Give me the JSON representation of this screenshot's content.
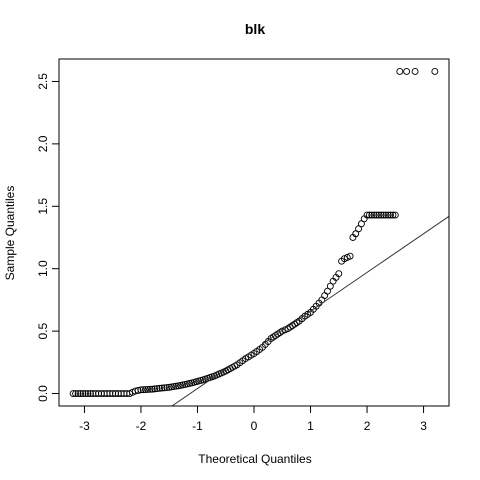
{
  "chart_data": {
    "type": "scatter",
    "title": "blk",
    "xlabel": "Theoretical Quantiles",
    "ylabel": "Sample Quantiles",
    "xlim": [
      -3.45,
      3.45
    ],
    "ylim": [
      -0.1,
      2.68
    ],
    "xticks": [
      -3,
      -2,
      -1,
      0,
      1,
      2,
      3
    ],
    "yticks": [
      0.0,
      0.5,
      1.0,
      1.5,
      2.0,
      2.5
    ],
    "xtick_labels": [
      "-3",
      "-2",
      "-1",
      "0",
      "1",
      "2",
      "3"
    ],
    "ytick_labels": [
      "0.0",
      "0.5",
      "1.0",
      "1.5",
      "2.0",
      "2.5"
    ],
    "grid": false,
    "marker": "open-circle",
    "reference_line": {
      "intercept": 0.35,
      "slope": 0.31
    },
    "points_curve": [
      [
        -3.2,
        0.0
      ],
      [
        -2.85,
        0.0
      ],
      [
        -2.7,
        0.0
      ],
      [
        -2.6,
        0.0
      ],
      [
        -2.5,
        0.0
      ],
      [
        -2.4,
        0.0
      ],
      [
        -2.3,
        0.0
      ],
      [
        -2.2,
        0.0
      ],
      [
        -2.15,
        0.01
      ],
      [
        -2.1,
        0.02
      ],
      [
        -2.0,
        0.03
      ],
      [
        -1.8,
        0.035
      ],
      [
        -1.5,
        0.05
      ],
      [
        -1.3,
        0.065
      ],
      [
        -1.1,
        0.085
      ],
      [
        -0.9,
        0.11
      ],
      [
        -0.7,
        0.14
      ],
      [
        -0.5,
        0.18
      ],
      [
        -0.3,
        0.23
      ],
      [
        -0.15,
        0.28
      ],
      [
        0.0,
        0.32
      ],
      [
        0.15,
        0.37
      ],
      [
        0.3,
        0.44
      ],
      [
        0.5,
        0.5
      ],
      [
        0.6,
        0.52
      ],
      [
        0.8,
        0.58
      ],
      [
        0.9,
        0.62
      ],
      [
        1.0,
        0.65
      ],
      [
        1.1,
        0.7
      ],
      [
        1.2,
        0.75
      ],
      [
        1.3,
        0.82
      ],
      [
        1.4,
        0.9
      ],
      [
        1.5,
        0.96
      ],
      [
        1.55,
        1.06
      ],
      [
        1.6,
        1.08
      ],
      [
        1.7,
        1.1
      ],
      [
        1.75,
        1.25
      ],
      [
        1.8,
        1.28
      ],
      [
        1.85,
        1.32
      ],
      [
        1.9,
        1.36
      ],
      [
        1.95,
        1.4
      ],
      [
        2.0,
        1.43
      ],
      [
        2.25,
        1.43
      ],
      [
        2.5,
        1.43
      ]
    ],
    "points_top": [
      [
        2.58,
        2.58
      ],
      [
        2.7,
        2.58
      ],
      [
        2.85,
        2.58
      ],
      [
        3.2,
        2.58
      ]
    ]
  }
}
